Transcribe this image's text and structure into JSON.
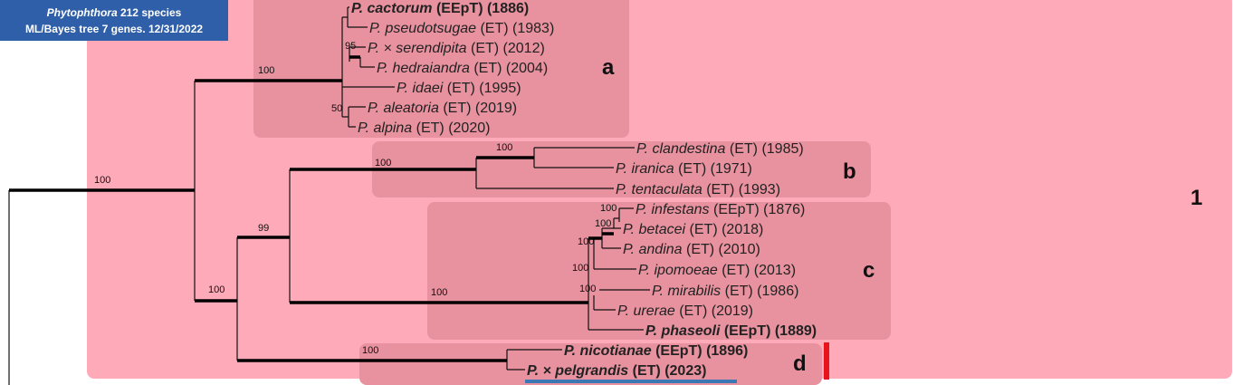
{
  "header": {
    "title_italic": "Phytophthora",
    "title_rest": " 212 species",
    "subtitle": "ML/Bayes tree 7 genes. 12/31/2022"
  },
  "taxa": [
    {
      "name": "P. cactorum",
      "details": " (EEpT) (1886)"
    },
    {
      "name": "P. pseudotsugae",
      "details": " (ET) (1983)"
    },
    {
      "name": "P. × serendipita",
      "details": " (ET) (2012)"
    },
    {
      "name": "P. hedraiandra",
      "details": " (ET) (2004)"
    },
    {
      "name": "P. idaei",
      "details": " (ET) (1995)"
    },
    {
      "name": "P. aleatoria",
      "details": " (ET) (2019)"
    },
    {
      "name": "P. alpina",
      "details": " (ET) (2020)"
    },
    {
      "name": "P. clandestina",
      "details": " (ET) (1985)"
    },
    {
      "name": "P. iranica",
      "details": " (ET) (1971)"
    },
    {
      "name": "P. tentaculata",
      "details": " (ET) (1993)"
    },
    {
      "name": "P. infestans",
      "details": " (EEpT) (1876)"
    },
    {
      "name": "P. betacei",
      "details": " (ET) (2018)"
    },
    {
      "name": "P. andina",
      "details": " (ET) (2010)"
    },
    {
      "name": "P. ipomoeae",
      "details": " (ET) (2013)"
    },
    {
      "name": "P. mirabilis",
      "details": " (ET) (1986)"
    },
    {
      "name": "P. urerae",
      "details": " (ET) (2019)"
    },
    {
      "name": "P. phaseoli",
      "details": " (EEpT) (1889)"
    },
    {
      "name": "P. nicotianae",
      "details": " (EEpT) (1896)"
    },
    {
      "name": "P. × pelgrandis",
      "details": " (ET) (2023)"
    }
  ],
  "support": [
    "100",
    "100",
    "95",
    "50",
    "100",
    "100",
    "99",
    "100",
    "100",
    "100",
    "100",
    "100",
    "100",
    "100",
    "100"
  ],
  "clades": [
    "a",
    "b",
    "c",
    "d",
    "1"
  ]
}
